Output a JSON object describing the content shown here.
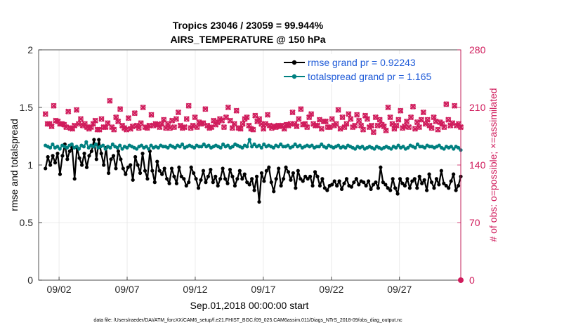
{
  "chart_data": {
    "type": "line",
    "title": "Tropics 23046 / 23059 = 99.944%",
    "subtitle": "AIRS_TEMPERATURE @ 150 hPa",
    "xlabel": "Sep.01,2018 00:00:00 start",
    "ylabel_left": "rmse and totalspread",
    "ylabel_right": "# of obs: o=possible; ×=assimilated",
    "ylim_left": [
      0,
      2
    ],
    "ylim_right": [
      0,
      280
    ],
    "xlim": [
      0.5,
      31.5
    ],
    "x_ticks": [
      {
        "value": 2,
        "label": "09/02"
      },
      {
        "value": 7,
        "label": "09/07"
      },
      {
        "value": 12,
        "label": "09/12"
      },
      {
        "value": 17,
        "label": "09/17"
      },
      {
        "value": 22,
        "label": "09/22"
      },
      {
        "value": 27,
        "label": "09/27"
      }
    ],
    "y_ticks_left": [
      "0",
      "0.5",
      "1",
      "1.5",
      "2"
    ],
    "y_ticks_right": [
      "0",
      "70",
      "140",
      "210",
      "280"
    ],
    "legend": {
      "location": "top-right",
      "entries": [
        {
          "label": "rmse grand pr = 0.92243",
          "color": "#000000"
        },
        {
          "label": "totalspread grand pr = 1.165",
          "color": "#008080"
        }
      ]
    },
    "series": [
      {
        "name": "rmse",
        "axis": "left",
        "color": "#000000",
        "values": [
          0.97,
          1.07,
          1.0,
          1.08,
          1.02,
          1.1,
          0.92,
          1.08,
          1.18,
          1.05,
          1.12,
          1.15,
          0.88,
          1.15,
          1.06,
          1.0,
          1.1,
          0.98,
          1.08,
          1.12,
          1.22,
          1.05,
          1.22,
          1.1,
          1.0,
          1.15,
          0.93,
          1.05,
          1.08,
          0.97,
          1.12,
          1.05,
          0.97,
          0.92,
          0.98,
          1.0,
          0.87,
          1.07,
          1.0,
          0.93,
          1.1,
          0.95,
          0.88,
          1.12,
          0.95,
          0.85,
          1.03,
          0.95,
          0.92,
          0.97,
          0.88,
          0.84,
          0.97,
          0.9,
          0.84,
          0.98,
          0.9,
          0.88,
          0.82,
          0.85,
          0.98,
          0.93,
          0.88,
          0.8,
          0.87,
          0.95,
          0.85,
          0.9,
          0.96,
          0.85,
          0.9,
          0.82,
          0.88,
          0.97,
          0.88,
          0.84,
          0.96,
          0.9,
          0.82,
          0.88,
          0.95,
          0.88,
          0.92,
          0.85,
          0.83,
          0.88,
          0.78,
          0.9,
          0.68,
          0.93,
          0.86,
          0.95,
          0.98,
          0.85,
          0.77,
          0.88,
          0.97,
          0.82,
          0.88,
          0.98,
          0.94,
          0.87,
          0.93,
          0.8,
          0.95,
          0.88,
          0.86,
          0.9,
          0.88,
          0.9,
          0.82,
          0.94,
          0.9,
          0.82,
          0.88,
          0.8,
          0.78,
          0.82,
          0.83,
          0.86,
          0.82,
          0.86,
          0.79,
          0.84,
          0.88,
          0.82,
          0.81,
          0.85,
          0.88,
          0.83,
          0.86,
          0.85,
          0.82,
          0.86,
          0.79,
          0.83,
          0.85,
          0.8,
          0.98,
          0.85,
          0.83,
          0.8,
          0.78,
          0.88,
          0.8,
          0.75,
          0.88,
          0.84,
          0.82,
          0.88,
          0.8,
          0.86,
          0.88,
          0.8,
          0.9,
          0.84,
          0.87,
          0.78,
          0.92,
          0.85,
          0.8,
          0.88,
          0.83,
          0.95,
          0.84,
          0.82,
          0.8,
          0.86,
          0.92,
          0.78,
          0.82,
          0.9
        ]
      },
      {
        "name": "totalspread",
        "axis": "left",
        "color": "#008080",
        "values": [
          1.17,
          1.16,
          1.15,
          1.18,
          1.15,
          1.16,
          1.14,
          1.17,
          1.16,
          1.15,
          1.17,
          1.18,
          1.15,
          1.16,
          1.14,
          1.17,
          1.16,
          1.2,
          1.15,
          1.17,
          1.16,
          1.18,
          1.15,
          1.16,
          1.17,
          1.14,
          1.16,
          1.15,
          1.18,
          1.16,
          1.15,
          1.17,
          1.14,
          1.16,
          1.15,
          1.17,
          1.16,
          1.15,
          1.14,
          1.16,
          1.17,
          1.15,
          1.16,
          1.14,
          1.17,
          1.15,
          1.16,
          1.15,
          1.17,
          1.16,
          1.16,
          1.15,
          1.17,
          1.16,
          1.15,
          1.17,
          1.16,
          1.18,
          1.15,
          1.16,
          1.17,
          1.16,
          1.15,
          1.17,
          1.16,
          1.16,
          1.18,
          1.16,
          1.17,
          1.15,
          1.16,
          1.17,
          1.16,
          1.15,
          1.18,
          1.16,
          1.17,
          1.15,
          1.16,
          1.18,
          1.17,
          1.16,
          1.15,
          1.17,
          1.16,
          1.22,
          1.16,
          1.18,
          1.16,
          1.17,
          1.15,
          1.18,
          1.16,
          1.17,
          1.16,
          1.15,
          1.17,
          1.16,
          1.18,
          1.16,
          1.16,
          1.17,
          1.15,
          1.16,
          1.18,
          1.16,
          1.17,
          1.15,
          1.16,
          1.17,
          1.16,
          1.17,
          1.15,
          1.16,
          1.16,
          1.18,
          1.16,
          1.15,
          1.17,
          1.16,
          1.15,
          1.16,
          1.17,
          1.15,
          1.16,
          1.15,
          1.17,
          1.16,
          1.15,
          1.14,
          1.16,
          1.15,
          1.16,
          1.14,
          1.15,
          1.16,
          1.15,
          1.14,
          1.16,
          1.15,
          1.14,
          1.15,
          1.16,
          1.15,
          1.14,
          1.16,
          1.15,
          1.17,
          1.15,
          1.16,
          1.14,
          1.15,
          1.17,
          1.16,
          1.15,
          1.18,
          1.16,
          1.16,
          1.15,
          1.17,
          1.16,
          1.16,
          1.15,
          1.16,
          1.17,
          1.15,
          1.14,
          1.16,
          1.15,
          1.16,
          1.14,
          1.16,
          1.15,
          1.13
        ]
      },
      {
        "name": "# of obs possible",
        "axis": "right",
        "color": "#d01c5c",
        "values": [
          202,
          190,
          190,
          187,
          212,
          194,
          193,
          190,
          190,
          189,
          186,
          205,
          185,
          184,
          188,
          207,
          190,
          196,
          188,
          190,
          186,
          184,
          186,
          190,
          194,
          183,
          183,
          196,
          186,
          186,
          191,
          218,
          186,
          183,
          198,
          193,
          208,
          188,
          185,
          183,
          197,
          184,
          187,
          203,
          188,
          185,
          191,
          210,
          186,
          185,
          188,
          201,
          188,
          190,
          189,
          186,
          190,
          195,
          185,
          190,
          185,
          194,
          186,
          196,
          204,
          188,
          185,
          186,
          196,
          212,
          185,
          188,
          198,
          186,
          192,
          190,
          191,
          208,
          188,
          185,
          186,
          194,
          189,
          192,
          196,
          194,
          186,
          198,
          210,
          194,
          185,
          190,
          206,
          185,
          184,
          190,
          196,
          198,
          188,
          184,
          183,
          200,
          193,
          196,
          190,
          184,
          190,
          201,
          188,
          185,
          187,
          186,
          188,
          187,
          188,
          184,
          189,
          188,
          190,
          204,
          190,
          187,
          196,
          208,
          189,
          190,
          186,
          198,
          202,
          190,
          188,
          188,
          195,
          184,
          193,
          193,
          186,
          186,
          196,
          188,
          190,
          207,
          184,
          198,
          186,
          190,
          202,
          196,
          186,
          188,
          201,
          194,
          188,
          183,
          200,
          196,
          186,
          188,
          180,
          198,
          188,
          195,
          189,
          187,
          182,
          210,
          198,
          190,
          184,
          188,
          195,
          206,
          185,
          187,
          193,
          186,
          198,
          211,
          184,
          192,
          186,
          195,
          204,
          190,
          195,
          188,
          185,
          198,
          193,
          183,
          192,
          190,
          186,
          214,
          195,
          188,
          191,
          212,
          188,
          190,
          186
        ]
      },
      {
        "name": "# of obs assimilated",
        "axis": "right",
        "color": "#d01c5c",
        "values": [
          202,
          190,
          190,
          187,
          212,
          194,
          193,
          190,
          190,
          189,
          186,
          205,
          185,
          184,
          188,
          207,
          190,
          196,
          188,
          190,
          186,
          184,
          186,
          190,
          194,
          183,
          183,
          196,
          186,
          186,
          191,
          218,
          186,
          183,
          198,
          193,
          208,
          188,
          185,
          183,
          197,
          184,
          187,
          203,
          188,
          185,
          191,
          210,
          186,
          185,
          188,
          201,
          188,
          190,
          189,
          186,
          190,
          195,
          185,
          190,
          185,
          194,
          186,
          196,
          204,
          188,
          185,
          186,
          196,
          212,
          185,
          188,
          198,
          186,
          192,
          190,
          191,
          208,
          188,
          185,
          186,
          194,
          189,
          192,
          196,
          194,
          186,
          198,
          210,
          194,
          185,
          190,
          206,
          185,
          184,
          190,
          196,
          198,
          188,
          184,
          183,
          200,
          193,
          196,
          190,
          184,
          190,
          201,
          188,
          185,
          187,
          186,
          188,
          187,
          188,
          184,
          189,
          188,
          190,
          204,
          190,
          187,
          196,
          208,
          189,
          190,
          186,
          198,
          202,
          190,
          188,
          188,
          195,
          184,
          193,
          193,
          186,
          186,
          196,
          188,
          190,
          207,
          184,
          198,
          186,
          190,
          202,
          196,
          186,
          188,
          201,
          194,
          188,
          183,
          200,
          196,
          186,
          188,
          180,
          198,
          188,
          195,
          189,
          187,
          182,
          210,
          198,
          190,
          184,
          188,
          195,
          206,
          185,
          187,
          193,
          186,
          198,
          211,
          184,
          192,
          186,
          195,
          204,
          190,
          195,
          188,
          185,
          198,
          193,
          183,
          192,
          190,
          186,
          214,
          195,
          188,
          191,
          212,
          188,
          190,
          186
        ]
      }
    ],
    "annotations": [
      "0"
    ]
  },
  "footer": "data file: /Users/raeder/DAI/ATM_forcXX/CAM6_setup/f.e21.FHIST_BGC.f09_025.CAM6assim.011/Diags_NTrS_2018-09/obs_diag_output.nc"
}
